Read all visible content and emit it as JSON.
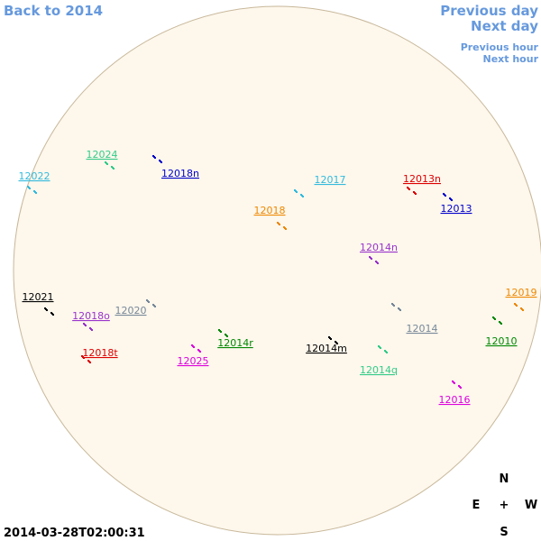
{
  "nav": {
    "back": "Back to 2014",
    "previous_day": "Previous day",
    "next_day": "Next day",
    "previous_hour": "Previous hour",
    "next_hour": "Next hour"
  },
  "timestamp": "2014-03-28T02:00:31",
  "compass": {
    "north": "N",
    "east": "E",
    "center": "+",
    "west": "W",
    "south": "S"
  },
  "regions": [
    {
      "label": "12024",
      "color": "#33cc88"
    },
    {
      "label": "12022",
      "color": "#33bbdd"
    },
    {
      "label": "12018n",
      "color": "#0000cc"
    },
    {
      "label": "12017",
      "color": "#33bbdd"
    },
    {
      "label": "12013n",
      "color": "#dd0000"
    },
    {
      "label": "12013",
      "color": "#0000cc"
    },
    {
      "label": "12018",
      "color": "#ee8800"
    },
    {
      "label": "12014n",
      "color": "#9933cc"
    },
    {
      "label": "12021",
      "color": "#000000"
    },
    {
      "label": "12019",
      "color": "#ee8800"
    },
    {
      "label": "12020",
      "color": "#778899"
    },
    {
      "label": "12018o",
      "color": "#9933cc"
    },
    {
      "label": "12014",
      "color": "#778899"
    },
    {
      "label": "12014r",
      "color": "#008800"
    },
    {
      "label": "12014m",
      "color": "#000000"
    },
    {
      "label": "12010",
      "color": "#008800"
    },
    {
      "label": "12018t",
      "color": "#dd0000"
    },
    {
      "label": "12025",
      "color": "#dd00dd"
    },
    {
      "label": "12014q",
      "color": "#33cc88"
    },
    {
      "label": "12016",
      "color": "#dd00dd"
    }
  ]
}
